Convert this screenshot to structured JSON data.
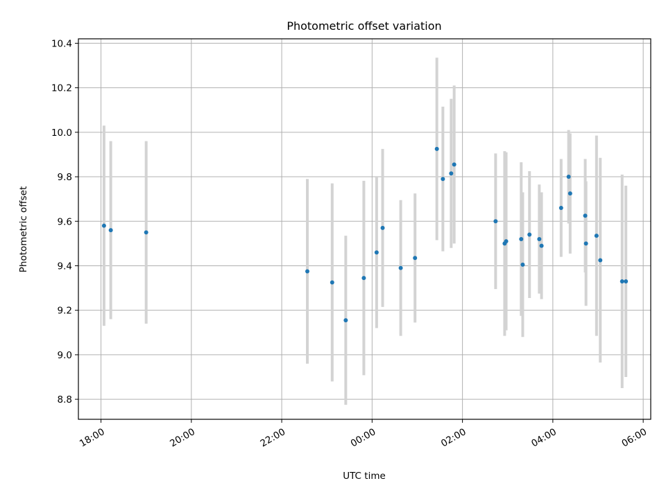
{
  "chart_data": {
    "type": "scatter",
    "title": "Photometric offset variation",
    "xlabel": "UTC time",
    "ylabel": "Photometric offset",
    "x_ticks": [
      "18:00",
      "20:00",
      "22:00",
      "00:00",
      "02:00",
      "04:00",
      "06:00"
    ],
    "y_ticks": [
      "8.8",
      "9.0",
      "9.2",
      "9.4",
      "9.6",
      "9.8",
      "10.0",
      "10.2",
      "10.4"
    ],
    "x_range": [
      "17:30",
      "06:10"
    ],
    "ylim": [
      8.71,
      10.42
    ],
    "grid": true,
    "marker_color": "#1f77b4",
    "errorbar_color": "#d3d3d3",
    "points": [
      {
        "time": "18:04",
        "y": 9.58,
        "err": 0.45
      },
      {
        "time": "18:13",
        "y": 9.56,
        "err": 0.4
      },
      {
        "time": "19:00",
        "y": 9.55,
        "err": 0.41
      },
      {
        "time": "22:34",
        "y": 9.375,
        "err": 0.415
      },
      {
        "time": "23:07",
        "y": 9.325,
        "err": 0.445
      },
      {
        "time": "23:25",
        "y": 9.155,
        "err": 0.38
      },
      {
        "time": "23:49",
        "y": 9.345,
        "err": 0.437
      },
      {
        "time": "00:06",
        "y": 9.46,
        "err": 0.34
      },
      {
        "time": "00:14",
        "y": 9.57,
        "err": 0.355
      },
      {
        "time": "00:38",
        "y": 9.39,
        "err": 0.305
      },
      {
        "time": "00:57",
        "y": 9.435,
        "err": 0.29
      },
      {
        "time": "01:26",
        "y": 9.925,
        "err": 0.41
      },
      {
        "time": "01:34",
        "y": 9.79,
        "err": 0.325
      },
      {
        "time": "01:45",
        "y": 9.815,
        "err": 0.335
      },
      {
        "time": "01:49",
        "y": 9.855,
        "err": 0.355
      },
      {
        "time": "02:44",
        "y": 9.6,
        "err": 0.305
      },
      {
        "time": "02:56",
        "y": 9.5,
        "err": 0.415
      },
      {
        "time": "02:58",
        "y": 9.51,
        "err": 0.4
      },
      {
        "time": "03:18",
        "y": 9.52,
        "err": 0.345
      },
      {
        "time": "03:20",
        "y": 9.405,
        "err": 0.325
      },
      {
        "time": "03:29",
        "y": 9.54,
        "err": 0.285
      },
      {
        "time": "03:42",
        "y": 9.52,
        "err": 0.245
      },
      {
        "time": "03:45",
        "y": 9.49,
        "err": 0.24
      },
      {
        "time": "04:11",
        "y": 9.66,
        "err": 0.22
      },
      {
        "time": "04:21",
        "y": 9.8,
        "err": 0.21
      },
      {
        "time": "04:23",
        "y": 9.725,
        "err": 0.27
      },
      {
        "time": "04:43",
        "y": 9.625,
        "err": 0.255
      },
      {
        "time": "04:44",
        "y": 9.5,
        "err": 0.28
      },
      {
        "time": "04:58",
        "y": 9.535,
        "err": 0.45
      },
      {
        "time": "05:03",
        "y": 9.425,
        "err": 0.46
      },
      {
        "time": "05:32",
        "y": 9.33,
        "err": 0.48
      },
      {
        "time": "05:37",
        "y": 9.33,
        "err": 0.43
      }
    ]
  }
}
